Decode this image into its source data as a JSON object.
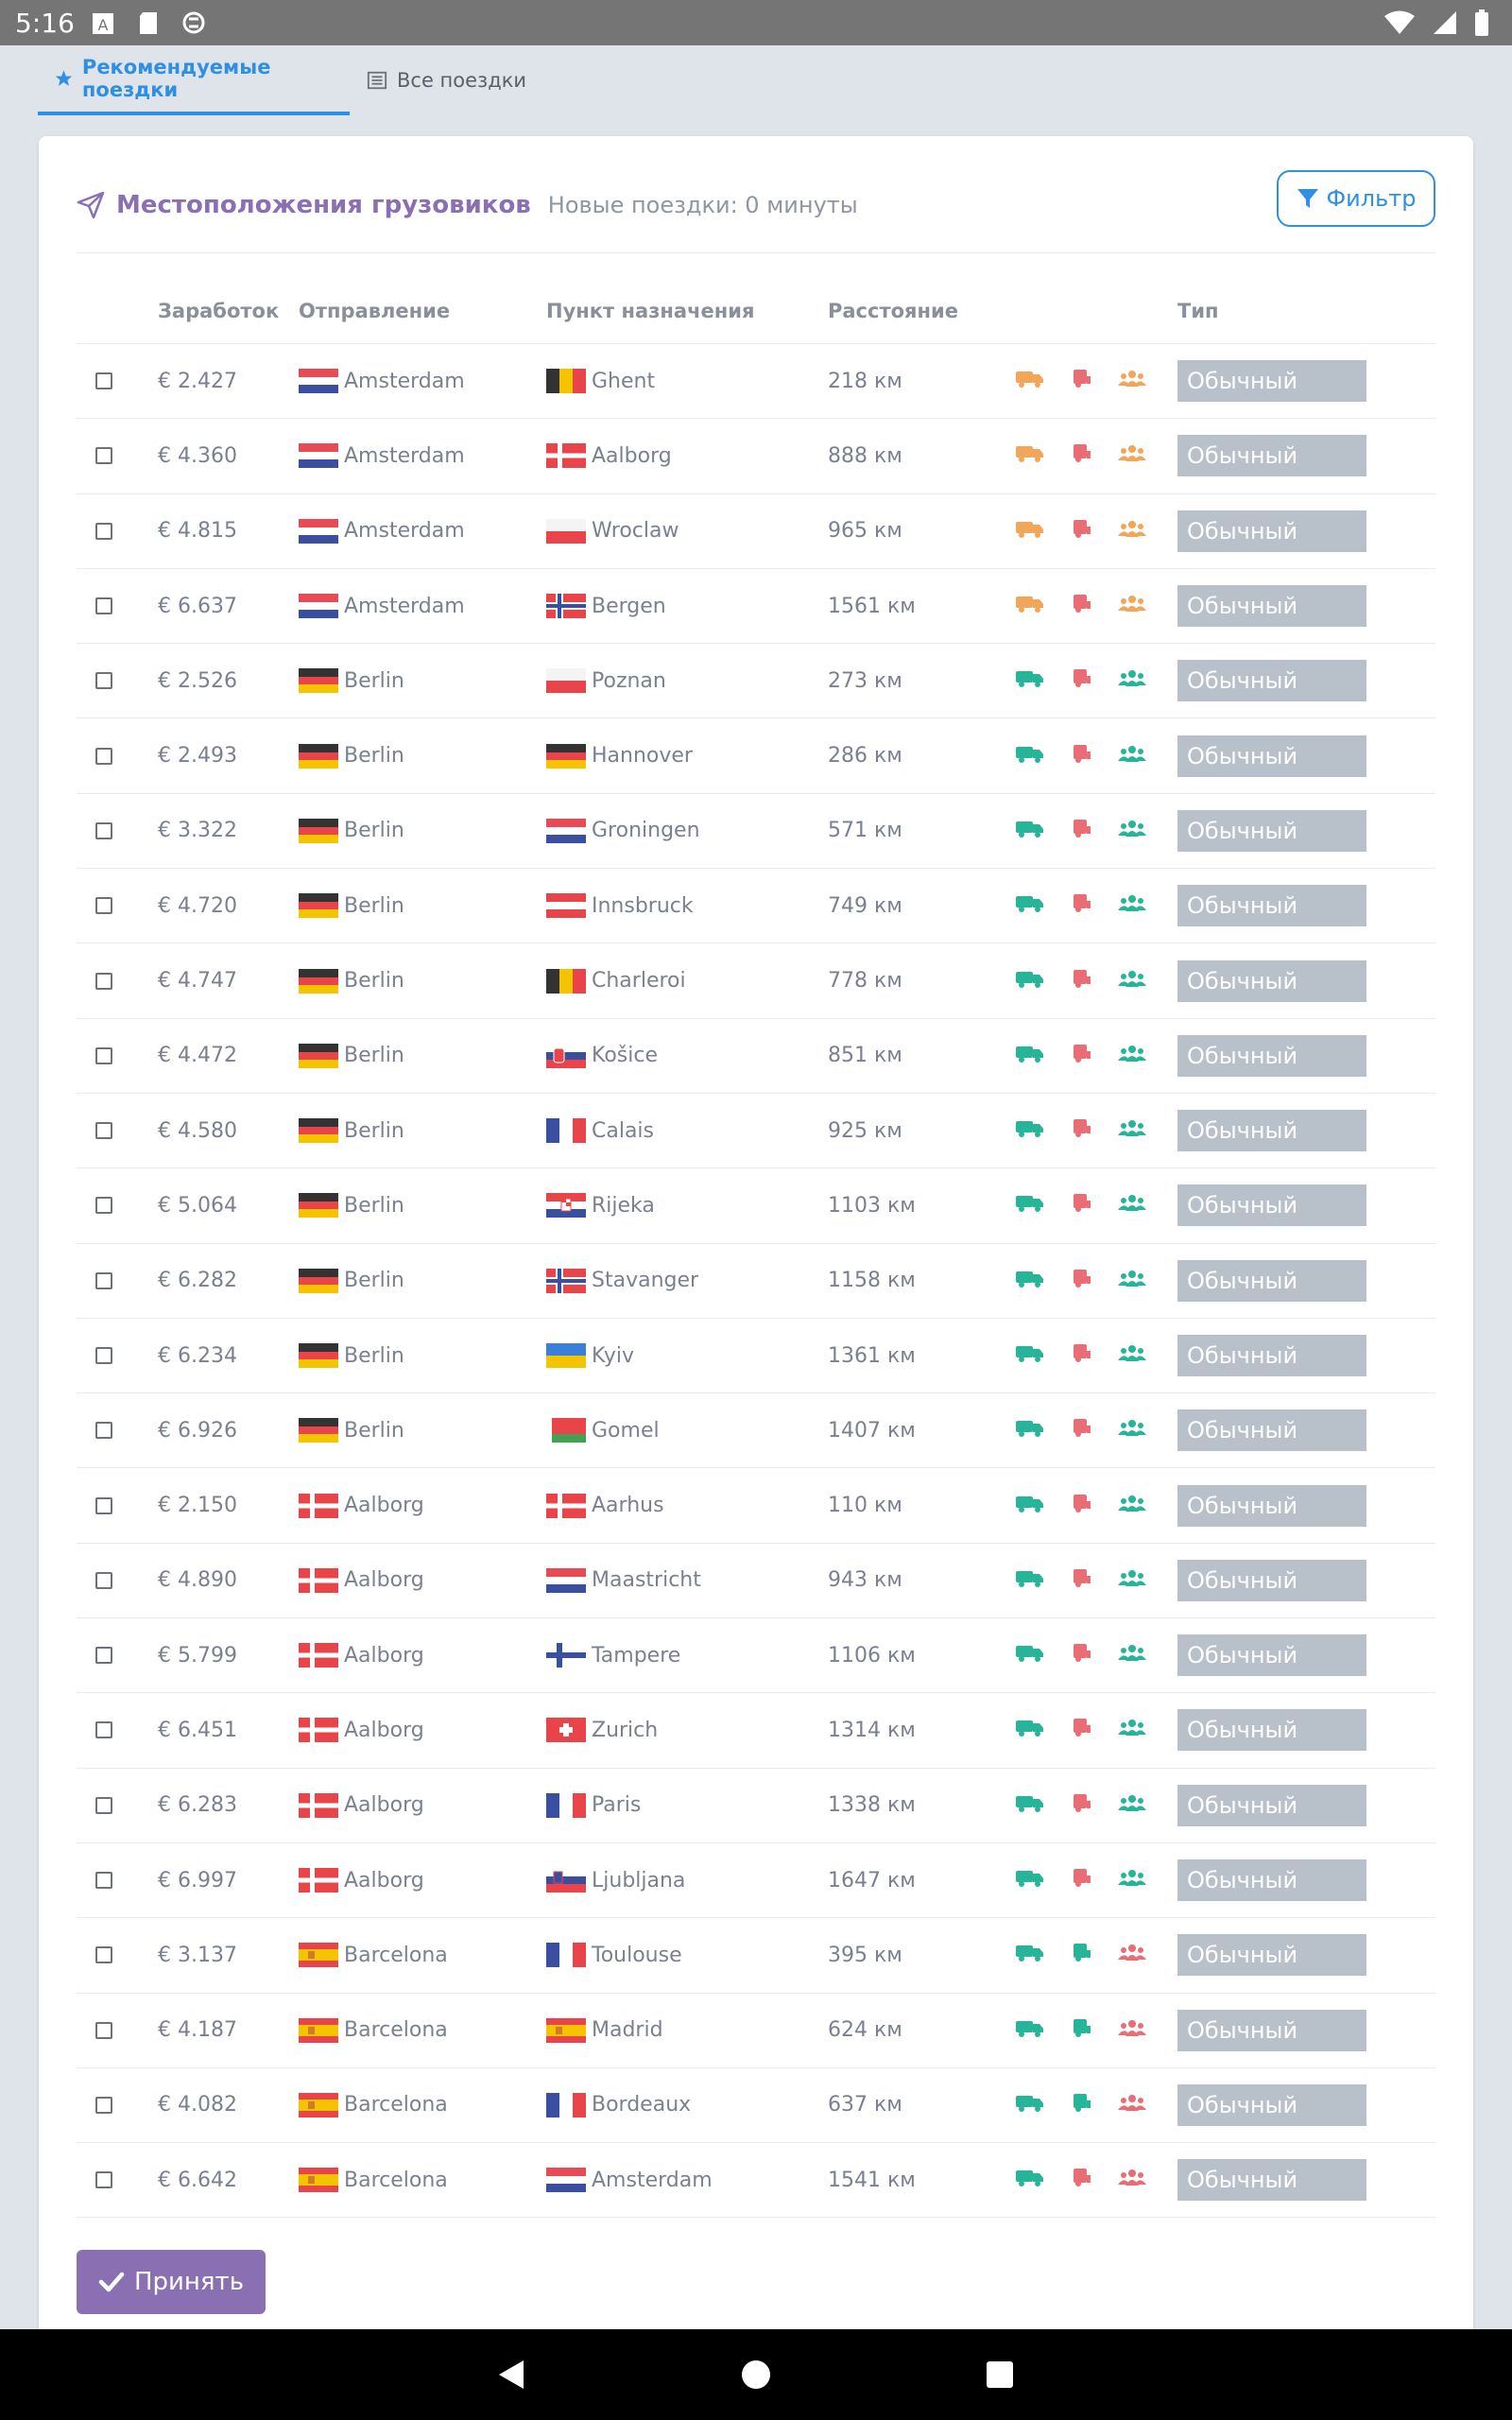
{
  "status_bar": {
    "time": "5:16"
  },
  "tabs": [
    {
      "label": "Рекомендуемые поездки",
      "active": true,
      "icon": "star-icon"
    },
    {
      "label": "Все поездки",
      "active": false,
      "icon": "list-icon"
    }
  ],
  "card": {
    "title": "Местоположения грузовиков",
    "subtitle": "Новые поездки: 0 минуты",
    "filter_label": "Фильтр"
  },
  "table": {
    "headers": {
      "earnings": "Заработок",
      "from": "Отправление",
      "to": "Пункт назначения",
      "distance": "Расстояние",
      "type": "Тип"
    },
    "rows": [
      {
        "earn": "€ 2.427",
        "from": "Amsterdam",
        "from_flag": "nl",
        "to": "Ghent",
        "to_flag": "be",
        "dist": "218 км",
        "icons": [
          "orange",
          "red",
          "orange"
        ],
        "type": "Обычный"
      },
      {
        "earn": "€ 4.360",
        "from": "Amsterdam",
        "from_flag": "nl",
        "to": "Aalborg",
        "to_flag": "dk",
        "dist": "888 км",
        "icons": [
          "orange",
          "red",
          "orange"
        ],
        "type": "Обычный"
      },
      {
        "earn": "€ 4.815",
        "from": "Amsterdam",
        "from_flag": "nl",
        "to": "Wroclaw",
        "to_flag": "pl",
        "dist": "965 км",
        "icons": [
          "orange",
          "red",
          "orange"
        ],
        "type": "Обычный"
      },
      {
        "earn": "€ 6.637",
        "from": "Amsterdam",
        "from_flag": "nl",
        "to": "Bergen",
        "to_flag": "no",
        "dist": "1561 км",
        "icons": [
          "orange",
          "red",
          "orange"
        ],
        "type": "Обычный"
      },
      {
        "earn": "€ 2.526",
        "from": "Berlin",
        "from_flag": "de",
        "to": "Poznan",
        "to_flag": "pl",
        "dist": "273 км",
        "icons": [
          "green",
          "red",
          "green"
        ],
        "type": "Обычный"
      },
      {
        "earn": "€ 2.493",
        "from": "Berlin",
        "from_flag": "de",
        "to": "Hannover",
        "to_flag": "de",
        "dist": "286 км",
        "icons": [
          "green",
          "red",
          "green"
        ],
        "type": "Обычный"
      },
      {
        "earn": "€ 3.322",
        "from": "Berlin",
        "from_flag": "de",
        "to": "Groningen",
        "to_flag": "nl",
        "dist": "571 км",
        "icons": [
          "green",
          "red",
          "green"
        ],
        "type": "Обычный"
      },
      {
        "earn": "€ 4.720",
        "from": "Berlin",
        "from_flag": "de",
        "to": "Innsbruck",
        "to_flag": "at",
        "dist": "749 км",
        "icons": [
          "green",
          "red",
          "green"
        ],
        "type": "Обычный"
      },
      {
        "earn": "€ 4.747",
        "from": "Berlin",
        "from_flag": "de",
        "to": "Charleroi",
        "to_flag": "be",
        "dist": "778 км",
        "icons": [
          "green",
          "red",
          "green"
        ],
        "type": "Обычный"
      },
      {
        "earn": "€ 4.472",
        "from": "Berlin",
        "from_flag": "de",
        "to": "Košice",
        "to_flag": "sk",
        "dist": "851 км",
        "icons": [
          "green",
          "red",
          "green"
        ],
        "type": "Обычный"
      },
      {
        "earn": "€ 4.580",
        "from": "Berlin",
        "from_flag": "de",
        "to": "Calais",
        "to_flag": "fr",
        "dist": "925 км",
        "icons": [
          "green",
          "red",
          "green"
        ],
        "type": "Обычный"
      },
      {
        "earn": "€ 5.064",
        "from": "Berlin",
        "from_flag": "de",
        "to": "Rijeka",
        "to_flag": "hr",
        "dist": "1103 км",
        "icons": [
          "green",
          "red",
          "green"
        ],
        "type": "Обычный"
      },
      {
        "earn": "€ 6.282",
        "from": "Berlin",
        "from_flag": "de",
        "to": "Stavanger",
        "to_flag": "no",
        "dist": "1158 км",
        "icons": [
          "green",
          "red",
          "green"
        ],
        "type": "Обычный"
      },
      {
        "earn": "€ 6.234",
        "from": "Berlin",
        "from_flag": "de",
        "to": "Kyiv",
        "to_flag": "ua",
        "dist": "1361 км",
        "icons": [
          "green",
          "red",
          "green"
        ],
        "type": "Обычный"
      },
      {
        "earn": "€ 6.926",
        "from": "Berlin",
        "from_flag": "de",
        "to": "Gomel",
        "to_flag": "by",
        "dist": "1407 км",
        "icons": [
          "green",
          "red",
          "green"
        ],
        "type": "Обычный"
      },
      {
        "earn": "€ 2.150",
        "from": "Aalborg",
        "from_flag": "dk",
        "to": "Aarhus",
        "to_flag": "dk",
        "dist": "110 км",
        "icons": [
          "green",
          "red",
          "green"
        ],
        "type": "Обычный"
      },
      {
        "earn": "€ 4.890",
        "from": "Aalborg",
        "from_flag": "dk",
        "to": "Maastricht",
        "to_flag": "nl",
        "dist": "943 км",
        "icons": [
          "green",
          "red",
          "green"
        ],
        "type": "Обычный"
      },
      {
        "earn": "€ 5.799",
        "from": "Aalborg",
        "from_flag": "dk",
        "to": "Tampere",
        "to_flag": "fi",
        "dist": "1106 км",
        "icons": [
          "green",
          "red",
          "green"
        ],
        "type": "Обычный"
      },
      {
        "earn": "€ 6.451",
        "from": "Aalborg",
        "from_flag": "dk",
        "to": "Zurich",
        "to_flag": "ch",
        "dist": "1314 км",
        "icons": [
          "green",
          "red",
          "green"
        ],
        "type": "Обычный"
      },
      {
        "earn": "€ 6.283",
        "from": "Aalborg",
        "from_flag": "dk",
        "to": "Paris",
        "to_flag": "fr",
        "dist": "1338 км",
        "icons": [
          "green",
          "red",
          "green"
        ],
        "type": "Обычный"
      },
      {
        "earn": "€ 6.997",
        "from": "Aalborg",
        "from_flag": "dk",
        "to": "Ljubljana",
        "to_flag": "si",
        "dist": "1647 км",
        "icons": [
          "green",
          "red",
          "green"
        ],
        "type": "Обычный"
      },
      {
        "earn": "€ 3.137",
        "from": "Barcelona",
        "from_flag": "es",
        "to": "Toulouse",
        "to_flag": "fr",
        "dist": "395 км",
        "icons": [
          "green",
          "green",
          "red"
        ],
        "type": "Обычный"
      },
      {
        "earn": "€ 4.187",
        "from": "Barcelona",
        "from_flag": "es",
        "to": "Madrid",
        "to_flag": "es",
        "dist": "624 км",
        "icons": [
          "green",
          "green",
          "red"
        ],
        "type": "Обычный"
      },
      {
        "earn": "€ 4.082",
        "from": "Barcelona",
        "from_flag": "es",
        "to": "Bordeaux",
        "to_flag": "fr",
        "dist": "637 км",
        "icons": [
          "green",
          "green",
          "red"
        ],
        "type": "Обычный"
      },
      {
        "earn": "€ 6.642",
        "from": "Barcelona",
        "from_flag": "es",
        "to": "Amsterdam",
        "to_flag": "nl",
        "dist": "1541 км",
        "icons": [
          "green",
          "red",
          "red"
        ],
        "type": "Обычный"
      }
    ]
  },
  "accept_label": "Принять",
  "colors": {
    "accent_blue": "#2f8fe3",
    "accent_purple": "#8a6fb3",
    "orange": "#f2a65a",
    "green": "#27b59a",
    "red": "#e86d74"
  }
}
